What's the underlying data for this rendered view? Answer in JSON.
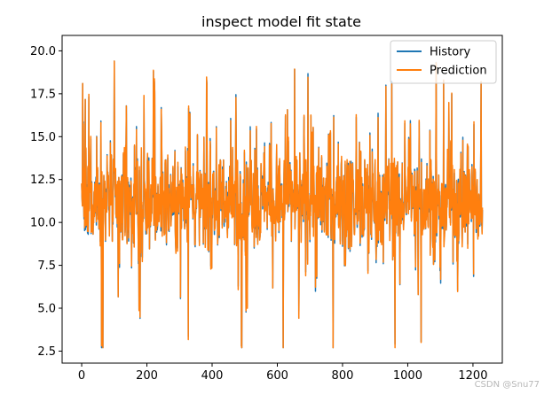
{
  "chart_data": {
    "type": "line",
    "title": "inspect model fit state",
    "xlabel": "",
    "ylabel": "",
    "xlim": [
      -60,
      1290
    ],
    "ylim": [
      1.8,
      20.9
    ],
    "x_ticks": [
      0,
      200,
      400,
      600,
      800,
      1000,
      1200
    ],
    "y_ticks": [
      2.5,
      5.0,
      7.5,
      10.0,
      12.5,
      15.0,
      17.5,
      20.0
    ],
    "y_tick_labels": [
      "2.5",
      "5.0",
      "7.5",
      "10.0",
      "12.5",
      "15.0",
      "17.5",
      "20.0"
    ],
    "n_points": 1230,
    "y_range_observed": [
      2.7,
      19.5
    ],
    "notable_values": [
      {
        "x": 3,
        "y": 18.1
      },
      {
        "x": 100,
        "y": 19.4
      },
      {
        "x": 490,
        "y": 2.8
      },
      {
        "x": 618,
        "y": 2.7
      },
      {
        "x": 1225,
        "y": 18.2
      }
    ],
    "series": [
      {
        "name": "History",
        "color": "#1f77b4"
      },
      {
        "name": "Prediction",
        "color": "#ff7f0e"
      }
    ],
    "legend_position": "top-right",
    "grid": false
  },
  "watermark": "CSDN @Snu77"
}
